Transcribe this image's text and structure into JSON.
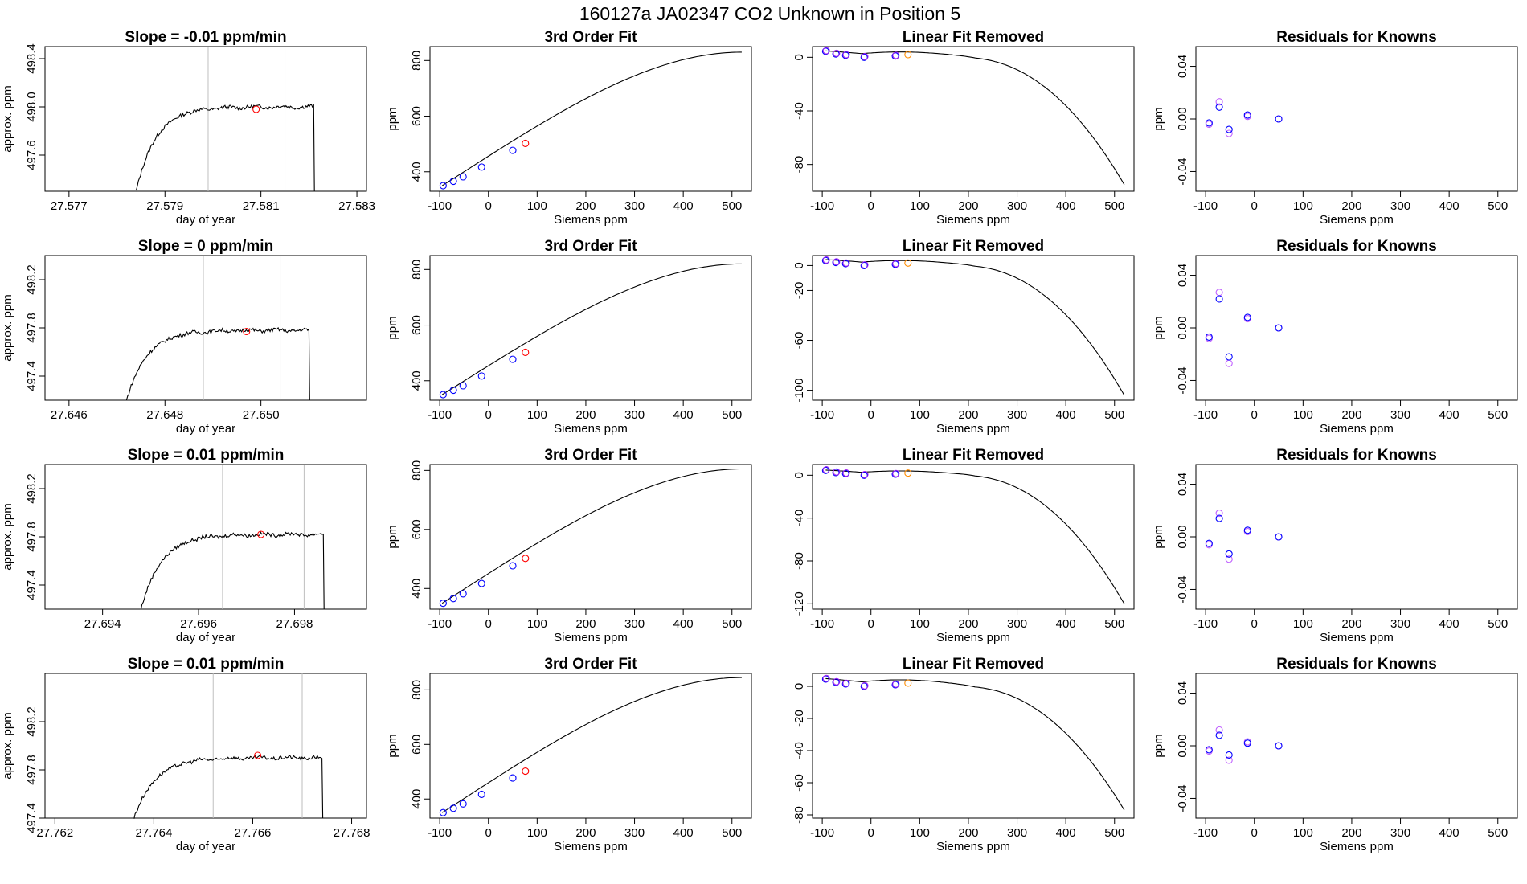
{
  "figure": {
    "title": "160127a     JA02347    CO2 Unknown in Position  5"
  },
  "colors": {
    "axis": "#000000",
    "line": "#000000",
    "vline": "#bebebe",
    "unknown_point": "#ff0000",
    "fit_point": "#0000ff",
    "unknown_fit_point": "#ff0000",
    "removed_point": "#0000ff",
    "removed_point_alt": "#a020f0",
    "removed_unknown": "#ff8c00",
    "resid_a": "#0000ff",
    "resid_b": "#c060ff"
  },
  "chart_data": [
    {
      "type": "line",
      "row": 0,
      "col": 0,
      "title": "Slope =  -0.01  ppm/min",
      "xlabel": "day of year",
      "ylabel": "approx. ppm",
      "xlim": [
        27.5765,
        27.5832
      ],
      "ylim": [
        497.3,
        498.5
      ],
      "xticks": [
        "27.577",
        "27.579",
        "27.581",
        "27.583"
      ],
      "yticks": [
        "497.6",
        "498.0",
        "498.4"
      ],
      "vlines": [
        27.5799,
        27.5815
      ],
      "trace_start": 27.5784,
      "trace_drop": 27.5821,
      "baseline": 498.0,
      "rise_from": 497.3,
      "point": {
        "x": 27.5809,
        "y": 497.98
      }
    },
    {
      "type": "line",
      "row": 1,
      "col": 0,
      "title": "Slope =  0  ppm/min",
      "xlabel": "day of year",
      "ylabel": "approx. ppm",
      "xlim": [
        27.6455,
        27.6522
      ],
      "ylim": [
        497.2,
        498.4
      ],
      "xticks": [
        "27.646",
        "27.648",
        "27.650"
      ],
      "yticks": [
        "497.4",
        "497.8",
        "498.2"
      ],
      "vlines": [
        27.6488,
        27.6504
      ],
      "trace_start": 27.6472,
      "trace_drop": 27.651,
      "baseline": 497.78,
      "rise_from": 497.2,
      "point": {
        "x": 27.6497,
        "y": 497.77
      }
    },
    {
      "type": "line",
      "row": 2,
      "col": 0,
      "title": "Slope =  0.01  ppm/min",
      "xlabel": "day of year",
      "ylabel": "approx. ppm",
      "xlim": [
        27.6928,
        27.6995
      ],
      "ylim": [
        497.2,
        498.4
      ],
      "xticks": [
        "27.694",
        "27.696",
        "27.698"
      ],
      "yticks": [
        "497.4",
        "497.8",
        "498.2"
      ],
      "vlines": [
        27.6965,
        27.6982
      ],
      "trace_start": 27.6948,
      "trace_drop": 27.6986,
      "baseline": 497.82,
      "rise_from": 497.2,
      "point": {
        "x": 27.6973,
        "y": 497.82
      }
    },
    {
      "type": "line",
      "row": 3,
      "col": 0,
      "title": "Slope =  0.01  ppm/min",
      "xlabel": "day of year",
      "ylabel": "approx. ppm",
      "xlim": [
        27.7618,
        27.7683
      ],
      "ylim": [
        497.4,
        498.6
      ],
      "xticks": [
        "27.762",
        "27.764",
        "27.766",
        "27.768"
      ],
      "yticks": [
        "497.4",
        "497.8",
        "498.2"
      ],
      "vlines": [
        27.7652,
        27.767
      ],
      "trace_start": 27.7636,
      "trace_drop": 27.7674,
      "baseline": 497.9,
      "rise_from": 497.4,
      "point": {
        "x": 27.7661,
        "y": 497.92
      }
    },
    {
      "type": "scatter",
      "row": 0,
      "col": 1,
      "title": "3rd Order Fit",
      "xlabel": "Siemens ppm",
      "ylabel": "ppm",
      "xlim": [
        -120,
        540
      ],
      "ylim": [
        330,
        850
      ],
      "xticks": [
        "-100",
        "0",
        "100",
        "200",
        "300",
        "400",
        "500"
      ],
      "yticks": [
        "400",
        "600",
        "800"
      ],
      "curve": {
        "x0": -95,
        "x1": 520,
        "y_at_x0": 350,
        "y_at_x1": 830
      },
      "points": [
        [
          -93,
          350
        ],
        [
          -72,
          366
        ],
        [
          -52,
          382
        ],
        [
          -14,
          417
        ],
        [
          50,
          477
        ]
      ],
      "unknown": [
        76,
        502
      ]
    },
    {
      "type": "scatter",
      "row": 1,
      "col": 1,
      "title": "3rd Order Fit",
      "xlabel": "Siemens ppm",
      "ylabel": "ppm",
      "xlim": [
        -120,
        540
      ],
      "ylim": [
        330,
        850
      ],
      "xticks": [
        "-100",
        "0",
        "100",
        "200",
        "300",
        "400",
        "500"
      ],
      "yticks": [
        "400",
        "600",
        "800"
      ],
      "curve": {
        "x0": -95,
        "x1": 520,
        "y_at_x0": 350,
        "y_at_x1": 820
      },
      "points": [
        [
          -93,
          350
        ],
        [
          -72,
          366
        ],
        [
          -52,
          382
        ],
        [
          -14,
          417
        ],
        [
          50,
          477
        ]
      ],
      "unknown": [
        76,
        502
      ]
    },
    {
      "type": "scatter",
      "row": 2,
      "col": 1,
      "title": "3rd Order Fit",
      "xlabel": "Siemens ppm",
      "ylabel": "ppm",
      "xlim": [
        -120,
        540
      ],
      "ylim": [
        330,
        820
      ],
      "xticks": [
        "-100",
        "0",
        "100",
        "200",
        "300",
        "400",
        "500"
      ],
      "yticks": [
        "400",
        "600",
        "800"
      ],
      "curve": {
        "x0": -95,
        "x1": 520,
        "y_at_x0": 350,
        "y_at_x1": 805
      },
      "points": [
        [
          -93,
          350
        ],
        [
          -72,
          366
        ],
        [
          -52,
          382
        ],
        [
          -14,
          417
        ],
        [
          50,
          477
        ]
      ],
      "unknown": [
        76,
        502
      ]
    },
    {
      "type": "scatter",
      "row": 3,
      "col": 1,
      "title": "3rd Order Fit",
      "xlabel": "Siemens ppm",
      "ylabel": "ppm",
      "xlim": [
        -120,
        540
      ],
      "ylim": [
        330,
        860
      ],
      "xticks": [
        "-100",
        "0",
        "100",
        "200",
        "300",
        "400",
        "500"
      ],
      "yticks": [
        "400",
        "600",
        "800"
      ],
      "curve": {
        "x0": -95,
        "x1": 520,
        "y_at_x0": 350,
        "y_at_x1": 845
      },
      "points": [
        [
          -93,
          350
        ],
        [
          -72,
          366
        ],
        [
          -52,
          382
        ],
        [
          -14,
          417
        ],
        [
          50,
          477
        ]
      ],
      "unknown": [
        76,
        502
      ]
    },
    {
      "type": "line",
      "row": 0,
      "col": 2,
      "title": "Linear Fit Removed",
      "xlabel": "Siemens ppm",
      "ylabel": "",
      "xlim": [
        -120,
        540
      ],
      "ylim": [
        -100,
        8
      ],
      "xticks": [
        "-100",
        "0",
        "100",
        "200",
        "300",
        "400",
        "500"
      ],
      "yticks": [
        "0",
        "-40",
        "-80"
      ],
      "curve": {
        "x0": -93,
        "x1": 520,
        "y_min": -95
      },
      "points": [
        [
          -93,
          4.5
        ],
        [
          -72,
          2.5
        ],
        [
          -52,
          1.5
        ],
        [
          -14,
          0
        ],
        [
          50,
          1
        ],
        [
          76,
          2
        ]
      ]
    },
    {
      "type": "line",
      "row": 1,
      "col": 2,
      "title": "Linear Fit Removed",
      "xlabel": "Siemens ppm",
      "ylabel": "",
      "xlim": [
        -120,
        540
      ],
      "ylim": [
        -108,
        8
      ],
      "xticks": [
        "-100",
        "0",
        "100",
        "200",
        "300",
        "400",
        "500"
      ],
      "yticks": [
        "0",
        "-20",
        "-60",
        "-100"
      ],
      "curve": {
        "x0": -93,
        "x1": 520,
        "y_min": -104
      },
      "points": [
        [
          -93,
          4
        ],
        [
          -72,
          2.5
        ],
        [
          -52,
          1.5
        ],
        [
          -14,
          0
        ],
        [
          50,
          1
        ],
        [
          76,
          2
        ]
      ]
    },
    {
      "type": "line",
      "row": 2,
      "col": 2,
      "title": "Linear Fit Removed",
      "xlabel": "Siemens ppm",
      "ylabel": "",
      "xlim": [
        -120,
        540
      ],
      "ylim": [
        -125,
        10
      ],
      "xticks": [
        "-100",
        "0",
        "100",
        "200",
        "300",
        "400",
        "500"
      ],
      "yticks": [
        "0",
        "-40",
        "-80",
        "-120"
      ],
      "curve": {
        "x0": -93,
        "x1": 520,
        "y_min": -120
      },
      "points": [
        [
          -93,
          4.5
        ],
        [
          -72,
          2.5
        ],
        [
          -52,
          1.5
        ],
        [
          -14,
          0
        ],
        [
          50,
          1
        ],
        [
          76,
          2
        ]
      ]
    },
    {
      "type": "line",
      "row": 3,
      "col": 2,
      "title": "Linear Fit Removed",
      "xlabel": "Siemens ppm",
      "ylabel": "",
      "xlim": [
        -120,
        540
      ],
      "ylim": [
        -82,
        8
      ],
      "xticks": [
        "-100",
        "0",
        "100",
        "200",
        "300",
        "400",
        "500"
      ],
      "yticks": [
        "0",
        "-20",
        "-40",
        "-60",
        "-80"
      ],
      "curve": {
        "x0": -93,
        "x1": 520,
        "y_min": -77
      },
      "points": [
        [
          -93,
          4.5
        ],
        [
          -72,
          2.5
        ],
        [
          -52,
          1.5
        ],
        [
          -14,
          0
        ],
        [
          50,
          1
        ],
        [
          76,
          2
        ]
      ]
    },
    {
      "type": "scatter",
      "row": 0,
      "col": 3,
      "title": "Residuals for Knowns",
      "xlabel": "Siemens ppm",
      "ylabel": "ppm",
      "xlim": [
        -120,
        540
      ],
      "ylim": [
        -0.055,
        0.055
      ],
      "xticks": [
        "-100",
        "0",
        "100",
        "200",
        "300",
        "400",
        "500"
      ],
      "yticks": [
        "0.04",
        "0.00",
        "-0.04"
      ],
      "points_a": [
        [
          -93,
          -0.003
        ],
        [
          -72,
          0.009
        ],
        [
          -52,
          -0.008
        ],
        [
          -14,
          0.003
        ],
        [
          50,
          0.0
        ]
      ],
      "points_b": [
        [
          -93,
          -0.004
        ],
        [
          -72,
          0.013
        ],
        [
          -52,
          -0.011
        ],
        [
          -14,
          0.002
        ],
        [
          50,
          0.0
        ]
      ]
    },
    {
      "type": "scatter",
      "row": 1,
      "col": 3,
      "title": "Residuals for Knowns",
      "xlabel": "Siemens ppm",
      "ylabel": "ppm",
      "xlim": [
        -120,
        540
      ],
      "ylim": [
        -0.055,
        0.055
      ],
      "xticks": [
        "-100",
        "0",
        "100",
        "200",
        "300",
        "400",
        "500"
      ],
      "yticks": [
        "0.04",
        "0.00",
        "-0.04"
      ],
      "points_a": [
        [
          -93,
          -0.007
        ],
        [
          -72,
          0.022
        ],
        [
          -52,
          -0.022
        ],
        [
          -14,
          0.008
        ],
        [
          50,
          0.0
        ]
      ],
      "points_b": [
        [
          -93,
          -0.008
        ],
        [
          -72,
          0.027
        ],
        [
          -52,
          -0.027
        ],
        [
          -14,
          0.007
        ],
        [
          50,
          0.0
        ]
      ]
    },
    {
      "type": "scatter",
      "row": 2,
      "col": 3,
      "title": "Residuals for Knowns",
      "xlabel": "Siemens ppm",
      "ylabel": "ppm",
      "xlim": [
        -120,
        540
      ],
      "ylim": [
        -0.055,
        0.055
      ],
      "xticks": [
        "-100",
        "0",
        "100",
        "200",
        "300",
        "400",
        "500"
      ],
      "yticks": [
        "0.04",
        "0.00",
        "-0.04"
      ],
      "points_a": [
        [
          -93,
          -0.005
        ],
        [
          -72,
          0.014
        ],
        [
          -52,
          -0.013
        ],
        [
          -14,
          0.005
        ],
        [
          50,
          0.0
        ]
      ],
      "points_b": [
        [
          -93,
          -0.006
        ],
        [
          -72,
          0.018
        ],
        [
          -52,
          -0.017
        ],
        [
          -14,
          0.004
        ],
        [
          50,
          0.0
        ]
      ]
    },
    {
      "type": "scatter",
      "row": 3,
      "col": 3,
      "title": "Residuals for Knowns",
      "xlabel": "Siemens ppm",
      "ylabel": "ppm",
      "xlim": [
        -120,
        540
      ],
      "ylim": [
        -0.055,
        0.055
      ],
      "xticks": [
        "-100",
        "0",
        "100",
        "200",
        "300",
        "400",
        "500"
      ],
      "yticks": [
        "0.04",
        "0.00",
        "-0.04"
      ],
      "points_a": [
        [
          -93,
          -0.003
        ],
        [
          -72,
          0.008
        ],
        [
          -52,
          -0.007
        ],
        [
          -14,
          0.002
        ],
        [
          50,
          0.0
        ]
      ],
      "points_b": [
        [
          -93,
          -0.004
        ],
        [
          -72,
          0.012
        ],
        [
          -52,
          -0.011
        ],
        [
          -14,
          0.003
        ],
        [
          50,
          0.0
        ]
      ]
    }
  ]
}
